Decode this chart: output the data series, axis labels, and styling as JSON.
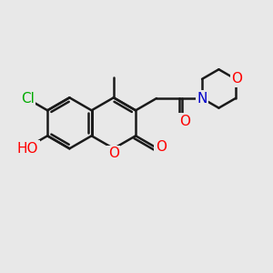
{
  "bg_color": "#e8e8e8",
  "bond_color": "#1a1a1a",
  "bond_width": 1.8,
  "atom_colors": {
    "Cl": "#00aa00",
    "O": "#ff0000",
    "N": "#0000cc",
    "C": "#1a1a1a"
  },
  "font_size": 10,
  "fig_size": [
    3.0,
    3.0
  ],
  "dpi": 100
}
